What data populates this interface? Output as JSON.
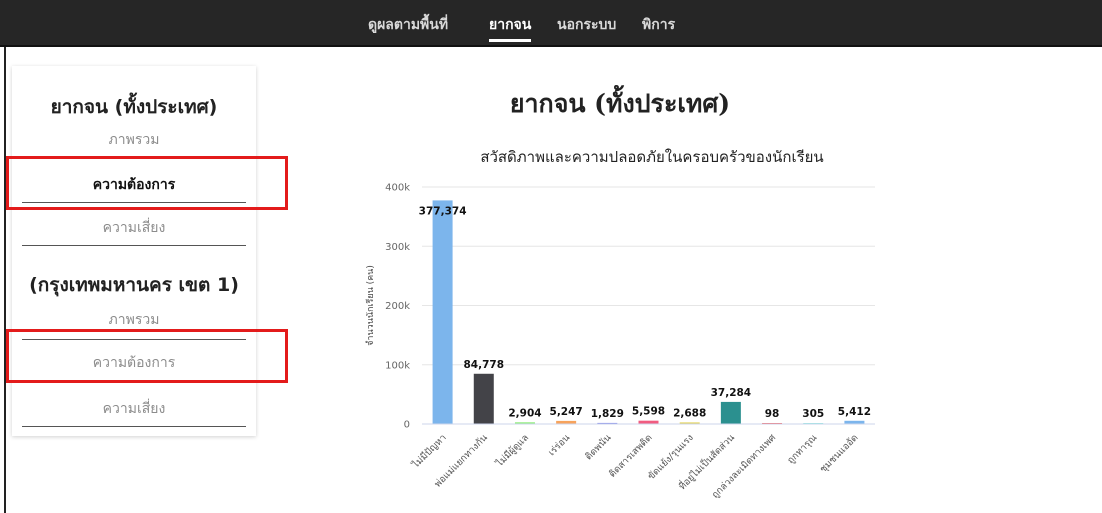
{
  "nav": {
    "items": [
      {
        "label": "ดูผลตามพื้นที่",
        "active": false
      },
      {
        "label": "ยากจน",
        "active": true
      },
      {
        "label": "นอกระบบ",
        "active": false
      },
      {
        "label": "พิการ",
        "active": false
      }
    ]
  },
  "sidebar": {
    "section1": {
      "title": "ยากจน (ทั้งประเทศ)",
      "items": [
        "ภาพรวม",
        "ความต้องการ",
        "ความเสี่ยง"
      ]
    },
    "section2": {
      "title": "(กรุงเทพมหานคร เขต 1)",
      "items": [
        "ภาพรวม",
        "ความต้องการ",
        "ความเสี่ยง"
      ]
    }
  },
  "main": {
    "title": "ยากจน (ทั้งประเทศ)"
  },
  "chart_data": {
    "type": "bar",
    "title": "สวัสดิภาพและความปลอดภัยในครอบครัวของนักเรียน",
    "ylabel": "จำนวนนักเรียน (คน)",
    "xlabel": "",
    "ylim": [
      0,
      400000
    ],
    "yticks": [
      0,
      100000,
      200000,
      300000,
      400000
    ],
    "ytick_labels": [
      "0",
      "100k",
      "200k",
      "300k",
      "400k"
    ],
    "grid": true,
    "categories": [
      "ไม่มีปัญหา",
      "พ่อแม่แยกทางกัน",
      "ไม่มีผู้ดูแล",
      "เร่ร่อน",
      "ติดพนัน",
      "ติดสารเสพติด",
      "ขัดแย้ง/รุนแรง",
      "ที่อยู่ไม่เป็นสัดส่วน",
      "ถูกล่วงละเมิดทางเพศ",
      "ถูกทารุณ",
      "ชุมชนแออัด"
    ],
    "values": [
      377374,
      84778,
      2904,
      5247,
      1829,
      5598,
      2688,
      37284,
      98,
      305,
      5412
    ],
    "value_labels": [
      "377,374",
      "84,778",
      "2,904",
      "5,247",
      "1,829",
      "5,598",
      "2,688",
      "37,284",
      "98",
      "305",
      "5,412"
    ],
    "colors": [
      "#7cb5ec",
      "#434348",
      "#90ed7d",
      "#f7a35c",
      "#8085e9",
      "#f15c80",
      "#e4d354",
      "#2b908f",
      "#f45b5b",
      "#91e8e1",
      "#7cb5ec"
    ]
  }
}
